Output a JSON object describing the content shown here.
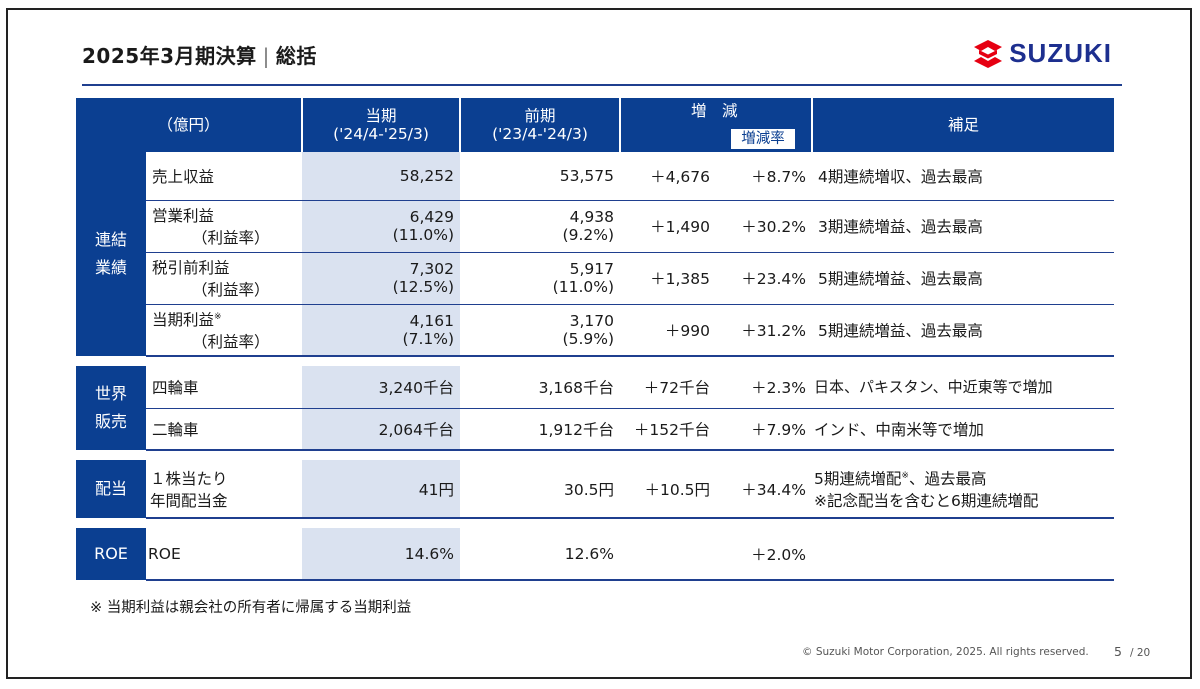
{
  "header": {
    "title_main": "2025年3月期決算",
    "title_sub": "総括",
    "logo_text": "SUZUKI"
  },
  "table": {
    "unit": "（億円）",
    "col_current": "当期",
    "col_current_period": "('24/4-'25/3)",
    "col_prev": "前期",
    "col_prev_period": "('23/4-'24/3)",
    "col_change": "増　減",
    "col_change_rate": "増減率",
    "col_note": "補足",
    "sections": [
      {
        "name_line1": "連結",
        "name_line2": "業績",
        "rows": [
          {
            "label": "売上収益",
            "sub": "",
            "cur": "58,252",
            "cur2": "",
            "prev": "53,575",
            "prev2": "",
            "chg": "＋4,676",
            "rate": "＋8.7%",
            "note": "4期連続増収、過去最高"
          },
          {
            "label": "営業利益",
            "sub": "（利益率）",
            "cur": "6,429",
            "cur2": "(11.0%)",
            "prev": "4,938",
            "prev2": "(9.2%)",
            "chg": "＋1,490",
            "rate": "＋30.2%",
            "note": "3期連続増益、過去最高"
          },
          {
            "label": "税引前利益",
            "sub": "（利益率）",
            "cur": "7,302",
            "cur2": "(12.5%)",
            "prev": "5,917",
            "prev2": "(11.0%)",
            "chg": "＋1,385",
            "rate": "＋23.4%",
            "note": "5期連続増益、過去最高"
          },
          {
            "label": "当期利益",
            "sub": "（利益率）",
            "cur": "4,161",
            "cur2": "(7.1%)",
            "prev": "3,170",
            "prev2": "(5.9%)",
            "chg": "＋990",
            "rate": "＋31.2%",
            "note": "5期連続増益、過去最高"
          }
        ]
      },
      {
        "name_line1": "世界",
        "name_line2": "販売",
        "rows": [
          {
            "label": "四輪車",
            "cur": "3,240千台",
            "prev": "3,168千台",
            "chg": "＋72千台",
            "rate": "＋2.3%",
            "note": "日本、パキスタン、中近東等で増加"
          },
          {
            "label": "二輪車",
            "cur": "2,064千台",
            "prev": "1,912千台",
            "chg": "＋152千台",
            "rate": "＋7.9%",
            "note": "インド、中南米等で増加"
          }
        ]
      },
      {
        "name": "配当",
        "label_line1": "１株当たり",
        "label_line2": "年間配当金",
        "cur": "41円",
        "prev": "30.5円",
        "chg": "＋10.5円",
        "rate": "＋34.4%",
        "note_line1": "5期連続増配",
        "note_line1b": "、過去最高",
        "note_line2": "※記念配当を含むと6期連続増配"
      },
      {
        "name": "ROE",
        "label": "ROE",
        "cur": "14.6%",
        "prev": "12.6%",
        "chg": "",
        "rate": "＋2.0%",
        "note": ""
      }
    ],
    "note_mark": "※"
  },
  "footnote": "※ 当期利益は親会社の所有者に帰属する当期利益",
  "footer": {
    "copyright": "© Suzuki Motor Corporation, 2025. All rights reserved.",
    "page": "5",
    "total": "/ 20"
  },
  "colors": {
    "navy": "#0b3f91",
    "shade": "#dae2f0",
    "logo_red": "#e60012",
    "logo_blue": "#1d2f8f"
  }
}
